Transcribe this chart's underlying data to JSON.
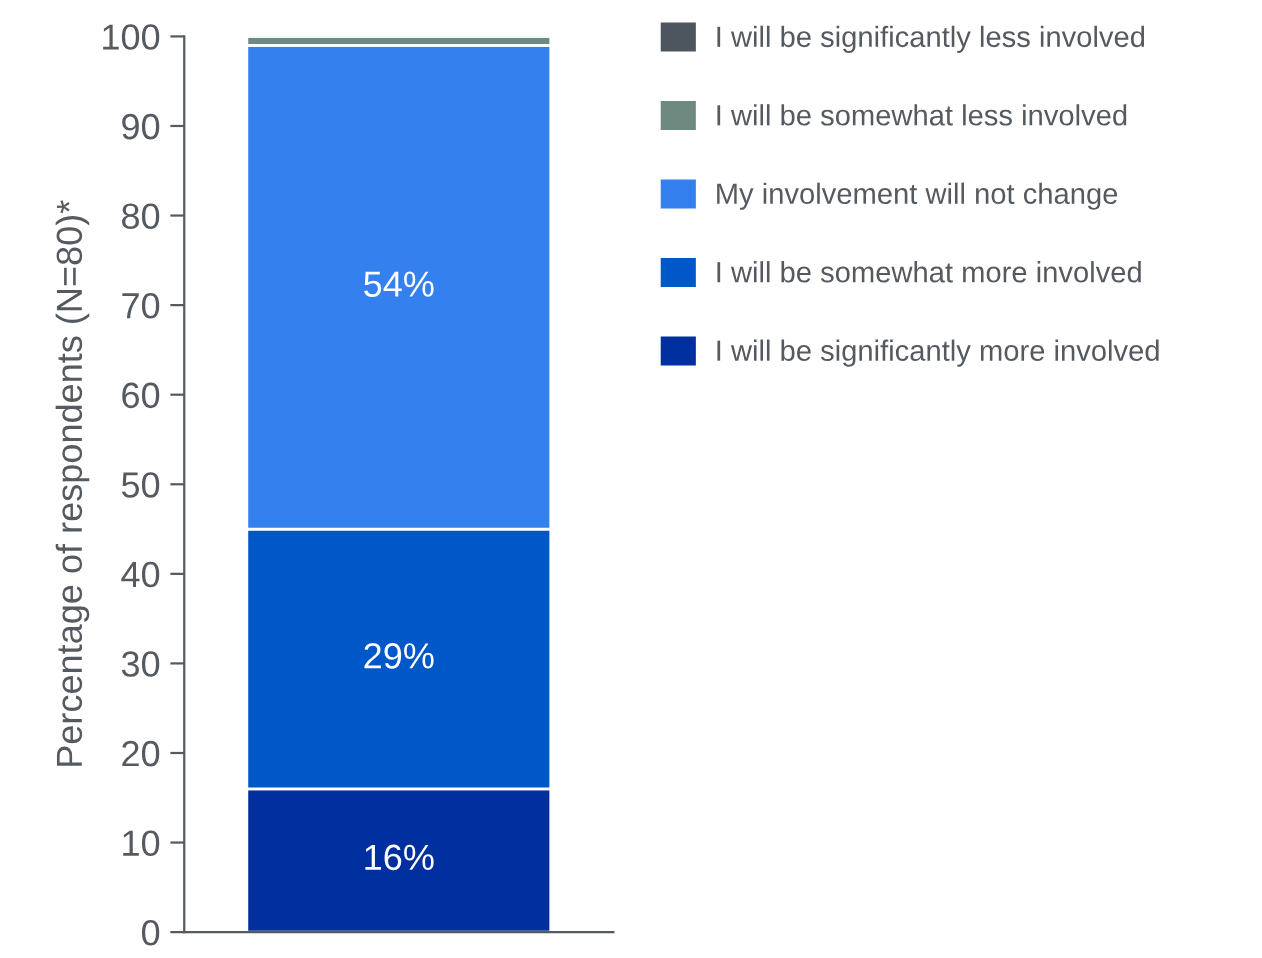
{
  "chart_data": {
    "type": "bar",
    "stacked": true,
    "ylabel": "Percentage of respondents (N=80)*",
    "categories": [
      null
    ],
    "ylim": [
      0,
      100
    ],
    "yticks": [
      0,
      10,
      20,
      30,
      40,
      50,
      60,
      70,
      80,
      90,
      100
    ],
    "grid": false,
    "legend": "right",
    "series": [
      {
        "name": "I will be significantly more involved",
        "color": "#0030a0",
        "values": [
          16
        ],
        "value_labels": [
          "16%"
        ]
      },
      {
        "name": "I will be somewhat more involved",
        "color": "#0058c8",
        "values": [
          29
        ],
        "value_labels": [
          "29%"
        ]
      },
      {
        "name": "My involvement will not change",
        "color": "#3380ee",
        "values": [
          54
        ],
        "value_labels": [
          "54%"
        ]
      },
      {
        "name": "I will be somewhat less involved",
        "color": "#6e8a80",
        "values": [
          1
        ],
        "value_labels": [
          null
        ]
      },
      {
        "name": "I will be significantly less involved",
        "color": "#4d555e",
        "values": [
          0
        ],
        "value_labels": [
          null
        ]
      }
    ]
  }
}
